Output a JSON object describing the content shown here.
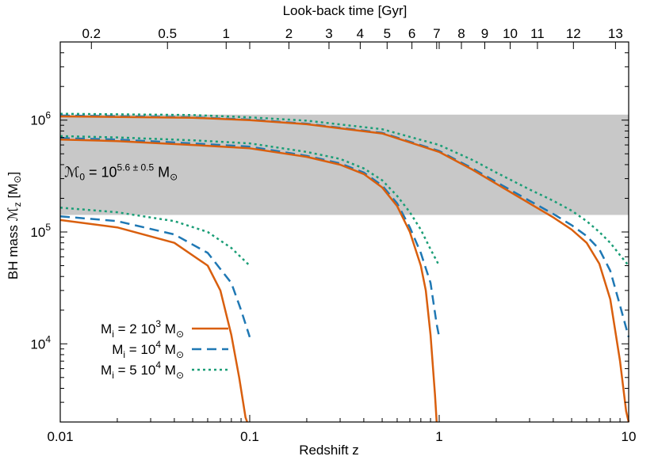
{
  "chart_data": {
    "type": "line",
    "title": "",
    "xlabel": "Redshift z",
    "x2label": "Look-back time [Gyr]",
    "ylabel_parts": {
      "prefix": "BH mass ",
      "symbol": "ℳ",
      "sub": "z",
      "unit_open": " [M",
      "sun": "⊙",
      "unit_close": "]"
    },
    "x_scale": "log",
    "y_scale": "log",
    "xlim": [
      0.01,
      10
    ],
    "ylim": [
      2000,
      5000000
    ],
    "grid": false,
    "x_ticks": [
      {
        "value": 0.01,
        "label": "0.01"
      },
      {
        "value": 0.1,
        "label": "0.1"
      },
      {
        "value": 1,
        "label": "1"
      },
      {
        "value": 10,
        "label": "10"
      }
    ],
    "y_ticks": [
      {
        "value": 10000,
        "base": "10",
        "exp": "4"
      },
      {
        "value": 100000,
        "base": "10",
        "exp": "5"
      },
      {
        "value": 1000000,
        "base": "10",
        "exp": "6"
      }
    ],
    "top_ticks": [
      {
        "value": 0.0146,
        "label": "0.2"
      },
      {
        "value": 0.0368,
        "label": "0.5"
      },
      {
        "value": 0.0751,
        "label": "1"
      },
      {
        "value": 0.161,
        "label": "2"
      },
      {
        "value": 0.262,
        "label": "3"
      },
      {
        "value": 0.383,
        "label": "4"
      },
      {
        "value": 0.531,
        "label": "5"
      },
      {
        "value": 0.718,
        "label": "6"
      },
      {
        "value": 0.97,
        "label": "7"
      },
      {
        "value": 1.31,
        "label": "8"
      },
      {
        "value": 1.74,
        "label": "9"
      },
      {
        "value": 2.37,
        "label": "10"
      },
      {
        "value": 3.3,
        "label": "11"
      },
      {
        "value": 5.11,
        "label": "12"
      },
      {
        "value": 8.52,
        "label": "13"
      }
    ],
    "band": {
      "ymin": 142000,
      "ymax": 1120000,
      "color": "#c8c8c8",
      "label_parts": {
        "symbol": "ℳ",
        "sub": "0",
        "eq": " = 10",
        "exp": "5.6 ± 0.5",
        "unit": " M",
        "sun": "⊙"
      },
      "label_pos": {
        "x": 0.0105,
        "y": 310000
      }
    },
    "series": [
      {
        "label_parts": {
          "prefix": "M",
          "sub": "i",
          "mid": " = 2 10",
          "exp": "3",
          "unit": " M",
          "sun": "⊙"
        },
        "color": "#d95f0e",
        "dash": "solid",
        "curves": [
          [
            [
              0.01,
              128000
            ],
            [
              0.02,
              110000
            ],
            [
              0.04,
              80000
            ],
            [
              0.06,
              50000
            ],
            [
              0.07,
              30000
            ],
            [
              0.08,
              12000
            ],
            [
              0.088,
              5000
            ],
            [
              0.095,
              2200
            ],
            [
              0.097,
              2000
            ]
          ],
          [
            [
              0.01,
              670000
            ],
            [
              0.02,
              650000
            ],
            [
              0.05,
              600000
            ],
            [
              0.1,
              560000
            ],
            [
              0.2,
              470000
            ],
            [
              0.3,
              400000
            ],
            [
              0.4,
              330000
            ],
            [
              0.5,
              250000
            ],
            [
              0.6,
              170000
            ],
            [
              0.7,
              100000
            ],
            [
              0.8,
              50000
            ],
            [
              0.85,
              30000
            ],
            [
              0.9,
              12000
            ],
            [
              0.95,
              3500
            ],
            [
              0.97,
              2000
            ]
          ],
          [
            [
              0.01,
              1080000
            ],
            [
              0.05,
              1050000
            ],
            [
              0.1,
              1000000
            ],
            [
              0.2,
              920000
            ],
            [
              0.5,
              760000
            ],
            [
              1,
              520000
            ],
            [
              1.5,
              360000
            ],
            [
              2,
              270000
            ],
            [
              3,
              180000
            ],
            [
              4,
              135000
            ],
            [
              5,
              105000
            ],
            [
              6,
              80000
            ],
            [
              7,
              52000
            ],
            [
              8,
              25000
            ],
            [
              9,
              7000
            ],
            [
              9.7,
              2500
            ],
            [
              10,
              2000
            ]
          ]
        ]
      },
      {
        "label_parts": {
          "prefix": "M",
          "sub": "i",
          "mid": " = 10",
          "exp": "4",
          "unit": " M",
          "sun": "⊙"
        },
        "color": "#1f78b4",
        "dash": "dashed",
        "curves": [
          [
            [
              0.01,
              138000
            ],
            [
              0.02,
              125000
            ],
            [
              0.04,
              95000
            ],
            [
              0.06,
              65000
            ],
            [
              0.08,
              35000
            ],
            [
              0.09,
              20000
            ],
            [
              0.1,
              11500
            ]
          ],
          [
            [
              0.01,
              690000
            ],
            [
              0.02,
              670000
            ],
            [
              0.05,
              620000
            ],
            [
              0.1,
              580000
            ],
            [
              0.2,
              480000
            ],
            [
              0.3,
              410000
            ],
            [
              0.4,
              340000
            ],
            [
              0.5,
              260000
            ],
            [
              0.6,
              180000
            ],
            [
              0.7,
              110000
            ],
            [
              0.8,
              65000
            ],
            [
              0.9,
              35000
            ],
            [
              0.97,
              15000
            ],
            [
              1,
              11500
            ]
          ],
          [
            [
              0.01,
              1100000
            ],
            [
              0.05,
              1060000
            ],
            [
              0.1,
              1010000
            ],
            [
              0.2,
              930000
            ],
            [
              0.5,
              770000
            ],
            [
              1,
              530000
            ],
            [
              1.5,
              370000
            ],
            [
              2,
              280000
            ],
            [
              3,
              190000
            ],
            [
              4,
              145000
            ],
            [
              5,
              115000
            ],
            [
              6,
              92000
            ],
            [
              7,
              70000
            ],
            [
              8,
              45000
            ],
            [
              9,
              22000
            ],
            [
              10,
              11500
            ]
          ]
        ]
      },
      {
        "label_parts": {
          "prefix": "M",
          "sub": "i",
          "mid": " = 5 10",
          "exp": "4",
          "unit": " M",
          "sun": "⊙"
        },
        "color": "#1b9e77",
        "dash": "dotted",
        "curves": [
          [
            [
              0.01,
              165000
            ],
            [
              0.02,
              150000
            ],
            [
              0.04,
              125000
            ],
            [
              0.06,
              100000
            ],
            [
              0.08,
              72000
            ],
            [
              0.1,
              50000
            ]
          ],
          [
            [
              0.01,
              720000
            ],
            [
              0.02,
              700000
            ],
            [
              0.05,
              660000
            ],
            [
              0.1,
              620000
            ],
            [
              0.2,
              520000
            ],
            [
              0.3,
              450000
            ],
            [
              0.4,
              370000
            ],
            [
              0.5,
              290000
            ],
            [
              0.6,
              210000
            ],
            [
              0.7,
              150000
            ],
            [
              0.8,
              105000
            ],
            [
              0.9,
              70000
            ],
            [
              1,
              50000
            ]
          ],
          [
            [
              0.01,
              1140000
            ],
            [
              0.05,
              1110000
            ],
            [
              0.1,
              1060000
            ],
            [
              0.2,
              990000
            ],
            [
              0.5,
              830000
            ],
            [
              1,
              600000
            ],
            [
              1.5,
              440000
            ],
            [
              2,
              340000
            ],
            [
              3,
              240000
            ],
            [
              4,
              190000
            ],
            [
              5,
              155000
            ],
            [
              6,
              125000
            ],
            [
              7,
              100000
            ],
            [
              8,
              80000
            ],
            [
              9,
              62000
            ],
            [
              10,
              50000
            ]
          ]
        ]
      }
    ],
    "legend_position": "bottom-left"
  }
}
